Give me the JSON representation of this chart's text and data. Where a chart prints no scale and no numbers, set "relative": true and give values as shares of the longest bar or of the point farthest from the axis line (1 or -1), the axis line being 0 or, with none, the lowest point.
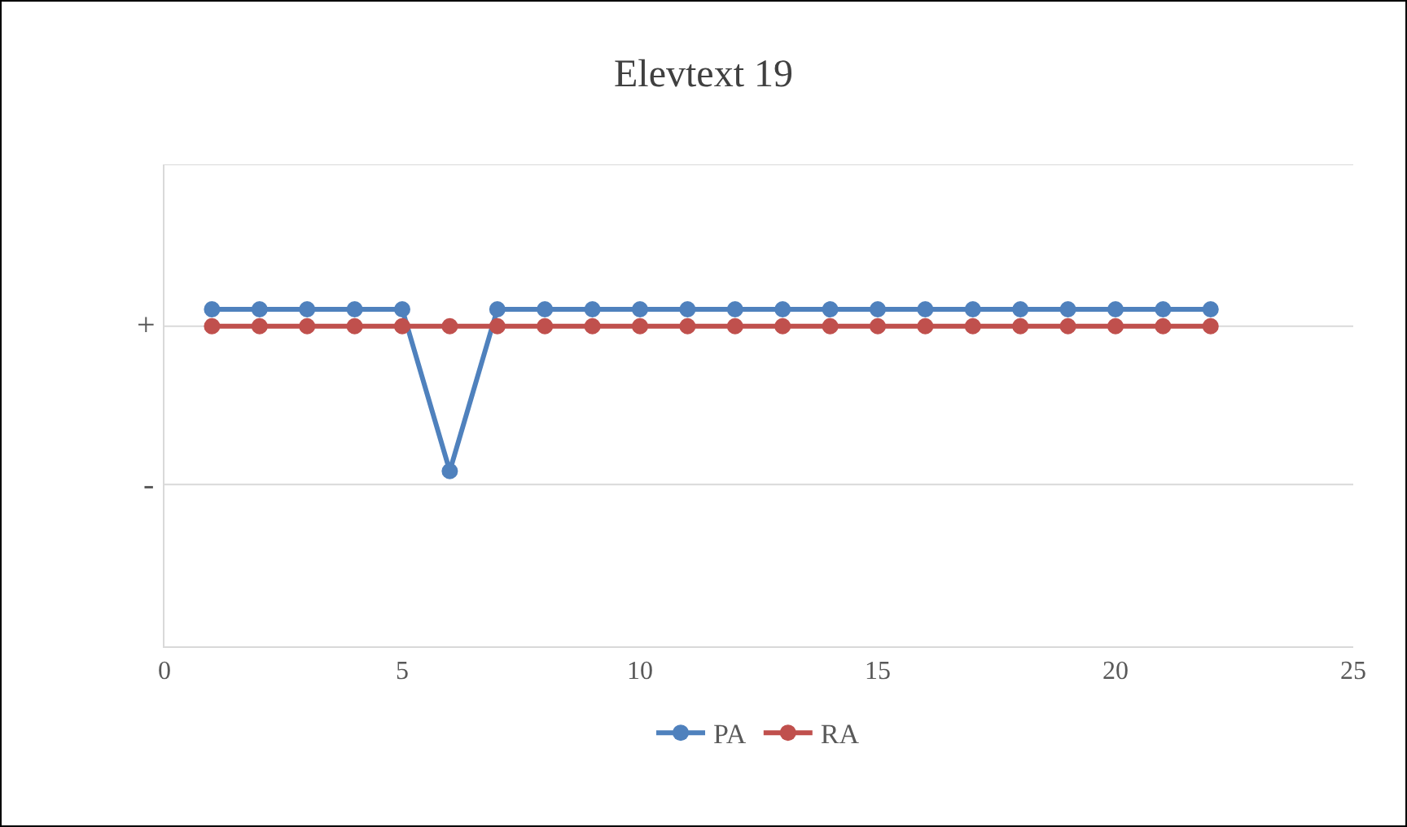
{
  "chart_data": {
    "type": "line",
    "title": "Elevtext 19",
    "x": [
      1,
      2,
      3,
      4,
      5,
      6,
      7,
      8,
      9,
      10,
      11,
      12,
      13,
      14,
      15,
      16,
      17,
      18,
      19,
      20,
      21,
      22
    ],
    "series": [
      {
        "name": "PA",
        "color": "#4f81bd",
        "values": [
          1,
          1,
          1,
          1,
          1,
          0.52,
          1,
          1,
          1,
          1,
          1,
          1,
          1,
          1,
          1,
          1,
          1,
          1,
          1,
          1,
          1,
          1
        ]
      },
      {
        "name": "RA",
        "color": "#c0504d",
        "values": [
          0.95,
          0.95,
          0.95,
          0.95,
          0.95,
          0.95,
          0.95,
          0.95,
          0.95,
          0.95,
          0.95,
          0.95,
          0.95,
          0.95,
          0.95,
          0.95,
          0.95,
          0.95,
          0.95,
          0.95,
          0.95,
          0.95
        ]
      }
    ],
    "relative": true,
    "xlim": [
      0,
      25
    ],
    "xticks": [
      0,
      5,
      10,
      15,
      20,
      25
    ],
    "ref_lines": [
      {
        "axis": "y",
        "value": 1.43,
        "color": "#d9d9d9"
      },
      {
        "axis": "y",
        "value": 0.95,
        "label": "+",
        "color": "#d9d9d9"
      },
      {
        "axis": "y",
        "value": 0.48,
        "label": "-",
        "color": "#d9d9d9"
      }
    ],
    "legend": "bottom",
    "marker": "circle",
    "line_style": "solid"
  }
}
